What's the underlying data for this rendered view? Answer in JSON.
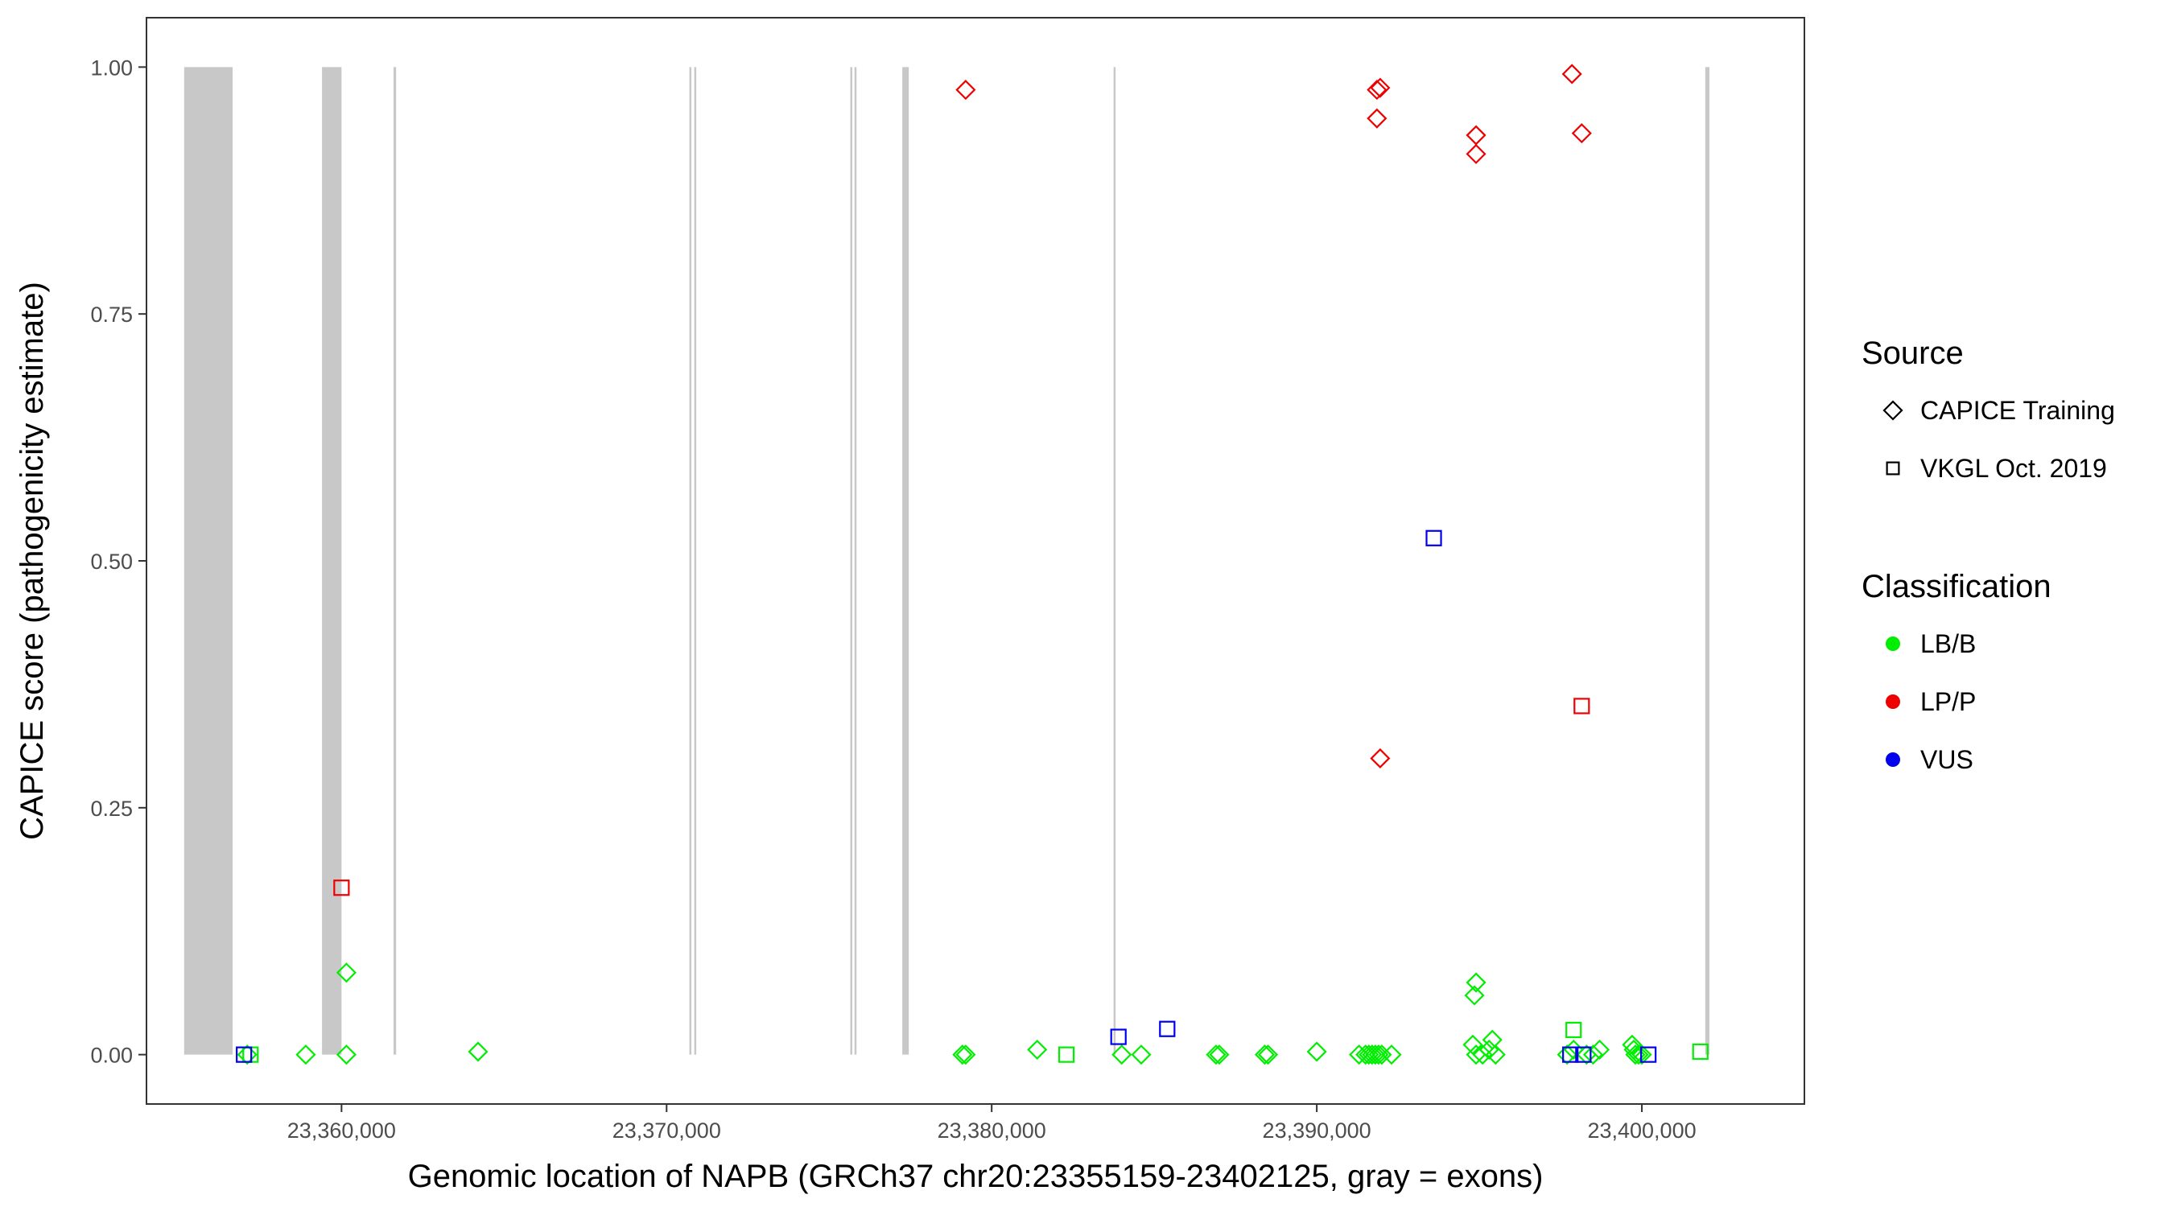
{
  "chart_data": {
    "type": "scatter",
    "xlabel": "Genomic location of NAPB (GRCh37 chr20:23355159-23402125, gray = exons)",
    "ylabel": "CAPICE score (pathogenicity estimate)",
    "xlim": [
      23354000,
      23405000
    ],
    "ylim": [
      -0.05,
      1.05
    ],
    "x_ticks": [
      23360000,
      23370000,
      23380000,
      23390000,
      23400000
    ],
    "x_tick_labels": [
      "23,360,000",
      "23,370,000",
      "23,380,000",
      "23,390,000",
      "23,400,000"
    ],
    "y_ticks": [
      0,
      0.25,
      0.5,
      0.75,
      1
    ],
    "y_tick_labels": [
      "0.00",
      "0.25",
      "0.50",
      "0.75",
      "1.00"
    ],
    "grid": false,
    "exons": [
      [
        23355159,
        23356650
      ],
      [
        23359400,
        23360000
      ],
      [
        23361600,
        23361680
      ],
      [
        23370700,
        23370760
      ],
      [
        23370850,
        23370890
      ],
      [
        23375650,
        23375700
      ],
      [
        23375780,
        23375820
      ],
      [
        23377250,
        23377450
      ],
      [
        23383750,
        23383800
      ],
      [
        23401950,
        23402080
      ]
    ],
    "legend": {
      "position": "right",
      "source_title": "Source",
      "source_entries": [
        {
          "label": "CAPICE Training",
          "shape": "diamond"
        },
        {
          "label": "VKGL Oct. 2019",
          "shape": "square"
        }
      ],
      "classification_title": "Classification",
      "classification_entries": [
        {
          "label": "LB/B",
          "color": "#00ee00"
        },
        {
          "label": "LP/P",
          "color": "#ee0000"
        },
        {
          "label": "VUS",
          "color": "#0000ee"
        }
      ]
    },
    "series": [
      {
        "source": "CAPICE Training",
        "classification": "LB/B",
        "shape": "diamond",
        "color": "#00ee00",
        "points": [
          [
            23357100,
            0.0
          ],
          [
            23358900,
            0.0
          ],
          [
            23360150,
            0.083
          ],
          [
            23360150,
            0.0
          ],
          [
            23364200,
            0.003
          ],
          [
            23379100,
            0.0
          ],
          [
            23379200,
            0.0
          ],
          [
            23381400,
            0.005
          ],
          [
            23384000,
            0.0
          ],
          [
            23384600,
            0.0
          ],
          [
            23386900,
            0.0
          ],
          [
            23387000,
            0.0
          ],
          [
            23388400,
            0.0
          ],
          [
            23388500,
            0.0
          ],
          [
            23390000,
            0.003
          ],
          [
            23391300,
            0.0
          ],
          [
            23391500,
            0.0
          ],
          [
            23391600,
            0.0
          ],
          [
            23391700,
            0.0
          ],
          [
            23391800,
            0.0
          ],
          [
            23391900,
            0.0
          ],
          [
            23392000,
            0.0
          ],
          [
            23392300,
            0.0
          ],
          [
            23394900,
            0.073
          ],
          [
            23394850,
            0.06
          ],
          [
            23394800,
            0.01
          ],
          [
            23394900,
            0.0
          ],
          [
            23395100,
            0.0
          ],
          [
            23395300,
            0.005
          ],
          [
            23395400,
            0.015
          ],
          [
            23395500,
            0.0
          ],
          [
            23397700,
            0.0
          ],
          [
            23397900,
            0.005
          ],
          [
            23398300,
            0.0
          ],
          [
            23398500,
            0.0
          ],
          [
            23398700,
            0.005
          ],
          [
            23399700,
            0.01
          ],
          [
            23399750,
            0.005
          ],
          [
            23399800,
            0.0
          ],
          [
            23399900,
            0.0
          ],
          [
            23400000,
            0.0
          ]
        ]
      },
      {
        "source": "VKGL Oct. 2019",
        "classification": "LB/B",
        "shape": "square",
        "color": "#00ee00",
        "points": [
          [
            23357200,
            0.0
          ],
          [
            23382300,
            0.0
          ],
          [
            23397900,
            0.025
          ],
          [
            23401800,
            0.003
          ]
        ]
      },
      {
        "source": "CAPICE Training",
        "classification": "LP/P",
        "shape": "diamond",
        "color": "#ee0000",
        "points": [
          [
            23379200,
            0.977
          ],
          [
            23391850,
            0.977
          ],
          [
            23391950,
            0.979
          ],
          [
            23391850,
            0.948
          ],
          [
            23391950,
            0.3
          ],
          [
            23394900,
            0.931
          ],
          [
            23394900,
            0.912
          ],
          [
            23397850,
            0.993
          ],
          [
            23398150,
            0.933
          ]
        ]
      },
      {
        "source": "VKGL Oct. 2019",
        "classification": "LP/P",
        "shape": "square",
        "color": "#ee0000",
        "points": [
          [
            23360000,
            0.169
          ],
          [
            23398150,
            0.353
          ]
        ]
      },
      {
        "source": "VKGL Oct. 2019",
        "classification": "VUS",
        "shape": "square",
        "color": "#0000ee",
        "points": [
          [
            23357000,
            0.0
          ],
          [
            23383900,
            0.018
          ],
          [
            23385400,
            0.026
          ],
          [
            23393600,
            0.523
          ],
          [
            23397800,
            0.0
          ],
          [
            23398200,
            0.0
          ],
          [
            23400200,
            0.0
          ]
        ]
      }
    ]
  }
}
